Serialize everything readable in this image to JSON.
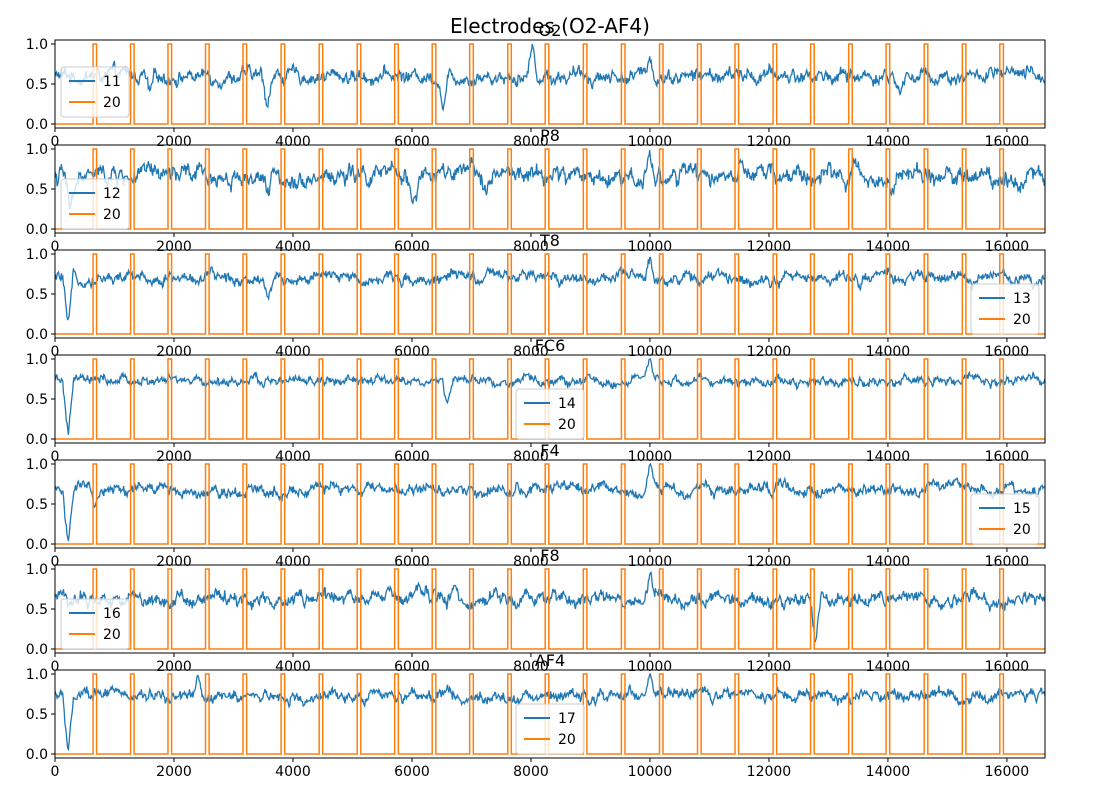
{
  "figure": {
    "suptitle": "Electrodes (O2-AF4)"
  },
  "colors": {
    "signal": "#1f77b4",
    "marker": "#ff7f0e",
    "axis": "#000000",
    "legend_border": "#cccccc"
  },
  "chart_data": [
    {
      "type": "line",
      "title": "O2",
      "xlim": [
        0,
        16640
      ],
      "ylim": [
        -0.05,
        1.05
      ],
      "x_ticks": [
        0,
        2000,
        4000,
        6000,
        8000,
        10000,
        12000,
        14000,
        16000
      ],
      "y_ticks": [
        0.0,
        0.5,
        1.0
      ],
      "legend": {
        "placement": "center-left",
        "entries": [
          "11",
          "20"
        ]
      },
      "series": [
        {
          "name": "11",
          "color": "#1f77b4",
          "baseline": 0.6,
          "noise": 0.06,
          "dips": [
            {
              "x": 1600,
              "y": 0.33
            },
            {
              "x": 3560,
              "y": 0.25
            },
            {
              "x": 6530,
              "y": 0.22
            },
            {
              "x": 14200,
              "y": 0.32
            }
          ],
          "spikes": [
            {
              "x": 8020,
              "y": 1.0
            },
            {
              "x": 10000,
              "y": 0.88
            }
          ]
        },
        {
          "name": "20",
          "color": "#ff7f0e",
          "low": 0.0,
          "high": 1.0,
          "pulse_starts": [
            640,
            1270,
            1900,
            2530,
            3160,
            3800,
            4440,
            5080,
            5710,
            6340,
            6970,
            7610,
            8240,
            8880,
            9520,
            10160,
            10800,
            11430,
            12070,
            12700,
            13340,
            13970,
            14610,
            15250,
            15880
          ],
          "pulse_width": 60
        }
      ]
    },
    {
      "type": "line",
      "title": "P8",
      "xlim": [
        0,
        16640
      ],
      "ylim": [
        -0.05,
        1.05
      ],
      "x_ticks": [
        0,
        2000,
        4000,
        6000,
        8000,
        10000,
        12000,
        14000,
        16000
      ],
      "y_ticks": [
        0.0,
        0.5,
        1.0
      ],
      "legend": {
        "placement": "lower-left",
        "entries": [
          "12",
          "20"
        ]
      },
      "series": [
        {
          "name": "12",
          "color": "#1f77b4",
          "baseline": 0.66,
          "noise": 0.08,
          "dips": [
            {
              "x": 260,
              "y": 0.15
            },
            {
              "x": 3580,
              "y": 0.36
            },
            {
              "x": 6040,
              "y": 0.33
            }
          ],
          "spikes": [
            {
              "x": 10000,
              "y": 0.97
            }
          ]
        },
        {
          "name": "20",
          "color": "#ff7f0e",
          "low": 0.0,
          "high": 1.0,
          "pulse_starts": [
            640,
            1270,
            1900,
            2530,
            3160,
            3800,
            4440,
            5080,
            5710,
            6340,
            6970,
            7610,
            8240,
            8880,
            9520,
            10160,
            10800,
            11430,
            12070,
            12700,
            13340,
            13970,
            14610,
            15250,
            15880
          ],
          "pulse_width": 60
        }
      ]
    },
    {
      "type": "line",
      "title": "T8",
      "xlim": [
        0,
        16640
      ],
      "ylim": [
        -0.05,
        1.05
      ],
      "x_ticks": [
        0,
        2000,
        4000,
        6000,
        8000,
        10000,
        12000,
        14000,
        16000
      ],
      "y_ticks": [
        0.0,
        0.5,
        1.0
      ],
      "legend": {
        "placement": "lower-right",
        "entries": [
          "13",
          "20"
        ]
      },
      "series": [
        {
          "name": "13",
          "color": "#1f77b4",
          "baseline": 0.7,
          "noise": 0.05,
          "dips": [
            {
              "x": 220,
              "y": 0.02
            },
            {
              "x": 3570,
              "y": 0.45
            }
          ],
          "spikes": [
            {
              "x": 10000,
              "y": 0.97
            }
          ]
        },
        {
          "name": "20",
          "color": "#ff7f0e",
          "low": 0.0,
          "high": 1.0,
          "pulse_starts": [
            640,
            1270,
            1900,
            2530,
            3160,
            3800,
            4440,
            5080,
            5710,
            6340,
            6970,
            7610,
            8240,
            8880,
            9520,
            10160,
            10800,
            11430,
            12070,
            12700,
            13340,
            13970,
            14610,
            15250,
            15880
          ],
          "pulse_width": 60
        }
      ]
    },
    {
      "type": "line",
      "title": "FC6",
      "xlim": [
        0,
        16640
      ],
      "ylim": [
        -0.05,
        1.05
      ],
      "x_ticks": [
        0,
        2000,
        4000,
        6000,
        8000,
        10000,
        12000,
        14000,
        16000
      ],
      "y_ticks": [
        0.0,
        0.5,
        1.0
      ],
      "legend": {
        "placement": "lower-center",
        "entries": [
          "14",
          "20"
        ]
      },
      "series": [
        {
          "name": "14",
          "color": "#1f77b4",
          "baseline": 0.72,
          "noise": 0.04,
          "dips": [
            {
              "x": 220,
              "y": 0.02
            },
            {
              "x": 6600,
              "y": 0.45
            }
          ],
          "spikes": [
            {
              "x": 10000,
              "y": 0.97
            }
          ]
        },
        {
          "name": "20",
          "color": "#ff7f0e",
          "low": 0.0,
          "high": 1.0,
          "pulse_starts": [
            640,
            1270,
            1900,
            2530,
            3160,
            3800,
            4440,
            5080,
            5710,
            6340,
            6970,
            7610,
            8240,
            8880,
            9520,
            10160,
            10800,
            11430,
            12070,
            12700,
            13340,
            13970,
            14610,
            15250,
            15880
          ],
          "pulse_width": 60
        }
      ]
    },
    {
      "type": "line",
      "title": "F4",
      "xlim": [
        0,
        16640
      ],
      "ylim": [
        -0.05,
        1.05
      ],
      "x_ticks": [
        0,
        2000,
        4000,
        6000,
        8000,
        10000,
        12000,
        14000,
        16000
      ],
      "y_ticks": [
        0.0,
        0.5,
        1.0
      ],
      "legend": {
        "placement": "lower-right",
        "entries": [
          "15",
          "20"
        ]
      },
      "series": [
        {
          "name": "15",
          "color": "#1f77b4",
          "baseline": 0.68,
          "noise": 0.05,
          "dips": [
            {
              "x": 220,
              "y": 0.02
            },
            {
              "x": 660,
              "y": 0.45
            }
          ],
          "spikes": [
            {
              "x": 10000,
              "y": 0.97
            }
          ]
        },
        {
          "name": "20",
          "color": "#ff7f0e",
          "low": 0.0,
          "high": 1.0,
          "pulse_starts": [
            640,
            1270,
            1900,
            2530,
            3160,
            3800,
            4440,
            5080,
            5710,
            6340,
            6970,
            7610,
            8240,
            8880,
            9520,
            10160,
            10800,
            11430,
            12070,
            12700,
            13340,
            13970,
            14610,
            15250,
            15880
          ],
          "pulse_width": 60
        }
      ]
    },
    {
      "type": "line",
      "title": "F8",
      "xlim": [
        0,
        16640
      ],
      "ylim": [
        -0.05,
        1.05
      ],
      "x_ticks": [
        0,
        2000,
        4000,
        6000,
        8000,
        10000,
        12000,
        14000,
        16000
      ],
      "y_ticks": [
        0.0,
        0.5,
        1.0
      ],
      "legend": {
        "placement": "lower-left",
        "entries": [
          "16",
          "20"
        ]
      },
      "series": [
        {
          "name": "16",
          "color": "#1f77b4",
          "baseline": 0.63,
          "noise": 0.06,
          "dips": [
            {
              "x": 12780,
              "y": 0.02
            }
          ],
          "spikes": [
            {
              "x": 10000,
              "y": 0.97
            }
          ]
        },
        {
          "name": "20",
          "color": "#ff7f0e",
          "low": 0.0,
          "high": 1.0,
          "pulse_starts": [
            640,
            1270,
            1900,
            2530,
            3160,
            3800,
            4440,
            5080,
            5710,
            6340,
            6970,
            7610,
            8240,
            8880,
            9520,
            10160,
            10800,
            11430,
            12070,
            12700,
            13340,
            13970,
            14610,
            15250,
            15880
          ],
          "pulse_width": 60
        }
      ]
    },
    {
      "type": "line",
      "title": "AF4",
      "xlim": [
        0,
        16640
      ],
      "ylim": [
        -0.05,
        1.05
      ],
      "x_ticks": [
        0,
        2000,
        4000,
        6000,
        8000,
        10000,
        12000,
        14000,
        16000
      ],
      "y_ticks": [
        0.0,
        0.5,
        1.0
      ],
      "legend": {
        "placement": "lower-center",
        "entries": [
          "17",
          "20"
        ]
      },
      "series": [
        {
          "name": "17",
          "color": "#1f77b4",
          "baseline": 0.72,
          "noise": 0.05,
          "dips": [
            {
              "x": 220,
              "y": 0.02
            }
          ],
          "spikes": [
            {
              "x": 2400,
              "y": 0.92
            },
            {
              "x": 10000,
              "y": 0.97
            }
          ]
        },
        {
          "name": "20",
          "color": "#ff7f0e",
          "low": 0.0,
          "high": 1.0,
          "pulse_starts": [
            640,
            1270,
            1900,
            2530,
            3160,
            3800,
            4440,
            5080,
            5710,
            6340,
            6970,
            7610,
            8240,
            8880,
            9520,
            10160,
            10800,
            11430,
            12070,
            12700,
            13340,
            13970,
            14610,
            15250,
            15880
          ],
          "pulse_width": 60
        }
      ]
    }
  ]
}
